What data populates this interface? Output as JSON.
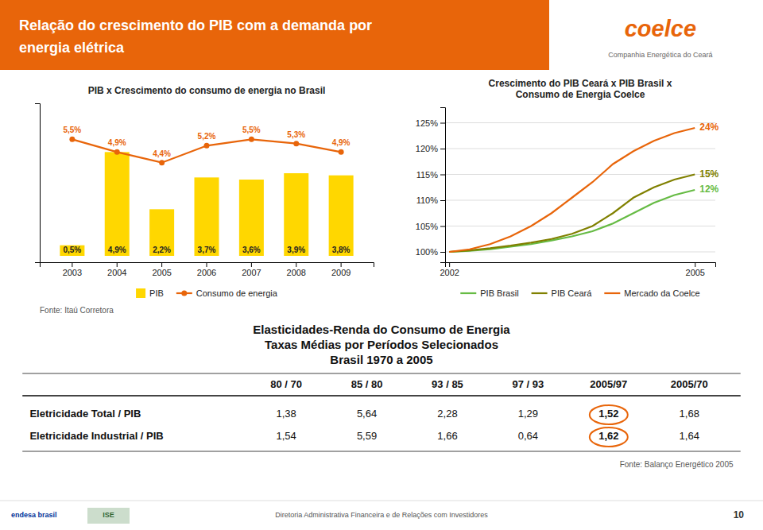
{
  "header": {
    "title": [
      "Relação do crescimento do PIB com a demanda por",
      "energia elétrica"
    ],
    "color": "#E8650A",
    "logo": "coelce",
    "logo_subtitle": "Companhia Energética do Ceará"
  },
  "chart_data": [
    {
      "type": "bar",
      "title": "PIB x Crescimento do consumo de energia no Brasil",
      "categories": [
        "2003",
        "2004",
        "2005",
        "2006",
        "2007",
        "2008",
        "2009"
      ],
      "series": [
        {
          "name": "PIB",
          "type": "bar",
          "color": "#FFD700",
          "values": [
            0.5,
            4.9,
            2.2,
            3.7,
            3.6,
            3.9,
            3.8
          ],
          "value_labels": [
            "0,5%",
            "4,9%",
            "2,2%",
            "3,7%",
            "3,6%",
            "3,9%",
            "3,8%"
          ]
        },
        {
          "name": "Consumo de energia",
          "type": "line",
          "color": "#E8650A",
          "marker": "circle",
          "values": [
            5.5,
            4.9,
            4.4,
            5.2,
            5.5,
            5.3,
            4.9
          ],
          "value_labels": [
            "5,5%",
            "4,9%",
            "4,4%",
            "5,2%",
            "5,5%",
            "5,3%",
            "4,9%"
          ]
        }
      ],
      "ylim": [
        -0.3,
        7.2
      ],
      "data_labels": true,
      "tick_labels": "x",
      "legend": "bottom",
      "annotations": [
        {
          "text": "Fonte: Itaú Corretora"
        }
      ]
    },
    {
      "type": "line",
      "title": "Crescimento do PIB Ceará x PIB Brasil x\nConsumo de Energia Coelce",
      "x": [
        2002,
        2002.25,
        2002.5,
        2002.75,
        2003,
        2003.25,
        2003.5,
        2003.75,
        2004,
        2004.25,
        2004.5,
        2004.75,
        2005
      ],
      "series": [
        {
          "name": "PIB Brasil",
          "color": "#66BB44",
          "values": [
            100,
            100.2,
            100.5,
            101.0,
            101.5,
            102.2,
            103.0,
            104.0,
            105.5,
            107.5,
            109.5,
            111.0,
            112
          ]
        },
        {
          "name": "PIB Ceará",
          "color": "#808000",
          "values": [
            100,
            100.3,
            100.7,
            101.2,
            101.8,
            102.5,
            103.5,
            105.0,
            107.5,
            110.5,
            112.5,
            114.0,
            115
          ]
        },
        {
          "name": "Mercado da Coelce",
          "color": "#E8650A",
          "values": [
            100,
            100.5,
            101.5,
            103.0,
            105.0,
            107.5,
            110.5,
            113.5,
            117.0,
            119.5,
            121.5,
            123.0,
            124
          ]
        }
      ],
      "xlim": [
        2001.95,
        2005.25
      ],
      "xticks": [
        2002,
        2005
      ],
      "ylim": [
        98,
        128
      ],
      "yticks": [
        {
          "value": 100,
          "label": "100%"
        },
        {
          "value": 105,
          "label": "105%"
        },
        {
          "value": 110,
          "label": "110%"
        },
        {
          "value": 115,
          "label": "115%"
        },
        {
          "value": 120,
          "label": "120%"
        },
        {
          "value": 125,
          "label": "125%"
        }
      ],
      "grid": true,
      "legend": "bottom",
      "annotations": [
        {
          "text": "12%",
          "x": 2005,
          "y": 112,
          "color": "#66BB44"
        },
        {
          "text": "15%",
          "x": 2005,
          "y": 115,
          "color": "#808000"
        },
        {
          "text": "24%",
          "x": 2005,
          "y": 124,
          "color": "#E8650A"
        }
      ]
    }
  ],
  "table": {
    "title": [
      "Elasticidades-Renda do Consumo de Energia",
      "Taxas Médias por Períodos Selecionados",
      "Brasil 1970 a 2005"
    ],
    "columns": [
      "80 / 70",
      "85 / 80",
      "93 / 85",
      "97 / 93",
      "2005/97",
      "2005/70"
    ],
    "rows": [
      {
        "label": "Eletricidade Total / PIB",
        "values": [
          {
            "value": 1.38,
            "label": "1,38"
          },
          {
            "value": 5.64,
            "label": "5,64"
          },
          {
            "value": 2.28,
            "label": "2,28"
          },
          {
            "value": 1.29,
            "label": "1,29"
          },
          {
            "value": 1.52,
            "label": "1,52"
          },
          {
            "value": 1.68,
            "label": "1,68"
          }
        ]
      },
      {
        "label": "Eletricidade Industrial / PIB",
        "values": [
          {
            "value": 1.54,
            "label": "1,54"
          },
          {
            "value": 5.59,
            "label": "5,59"
          },
          {
            "value": 1.66,
            "label": "1,66"
          },
          {
            "value": 0.64,
            "label": "0,64"
          },
          {
            "value": 1.62,
            "label": "1,62"
          },
          {
            "value": 1.64,
            "label": "1,64"
          }
        ]
      }
    ],
    "highlight": "2005/97",
    "highlight_color": "#E8650A",
    "source": "Fonte: Balanço Energético 2005"
  },
  "footer": {
    "logos": [
      "endesa brasil",
      "ISE"
    ],
    "text": "Diretoria Administrativa  Financeira e de Relações com Investidores",
    "page_number": 10
  }
}
